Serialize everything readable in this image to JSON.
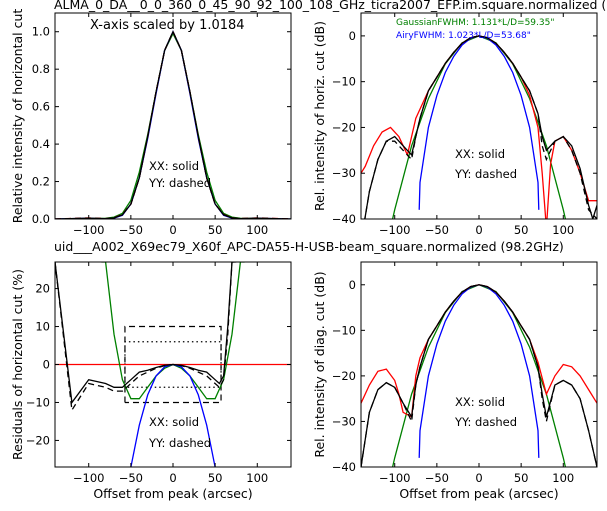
{
  "figure": {
    "title_top": "ALMA_0_DA__0_0_360_0_45_90_92_100_108_GHz_ticra2007_EFP.im.square.normalized (",
    "title_mid": "uid___A002_X69ec79_X60f_APC-DA55-H-USB-beam_square.normalized (98.2GHz)",
    "title_mid_color": "#ff0000",
    "scale_note": "X-axis scaled by 1.0184",
    "fit_gaussian": "GaussianFWHM: 1.131*L/D=59.35\"",
    "fit_gaussian_color": "#008000",
    "fit_airy": "AiryFWHM: 1.023*L/D=53.68\"",
    "fit_airy_color": "#0000ff",
    "legend_solid": "XX: solid",
    "legend_dashed": "YY: dashed",
    "colors": {
      "measured": "#000000",
      "model": "#ff0000",
      "gaussian": "#008000",
      "airy": "#0000ff"
    }
  },
  "chart_data": [
    {
      "id": "tl",
      "type": "line",
      "ylabel": "Relative intensity of horizontal cut",
      "xlabel": "",
      "xlim": [
        -140,
        140
      ],
      "ylim": [
        0.0,
        1.1
      ],
      "xticks": [
        -100,
        -50,
        0,
        50,
        100
      ],
      "yticks": [
        0.0,
        0.2,
        0.4,
        0.6,
        0.8,
        1.0
      ],
      "ytick_labels": [
        "0.0",
        "0.2",
        "0.4",
        "0.6",
        "0.8",
        "1.0"
      ],
      "series": [
        {
          "color": "#008000",
          "dash": false,
          "x": [
            -140,
            -80,
            -70,
            -60,
            -50,
            -40,
            -30,
            -20,
            -10,
            0,
            10,
            20,
            30,
            40,
            50,
            60,
            70,
            80,
            140
          ],
          "y": [
            0.0,
            0.004,
            0.01,
            0.03,
            0.1,
            0.25,
            0.45,
            0.68,
            0.9,
            0.99,
            0.9,
            0.68,
            0.45,
            0.25,
            0.1,
            0.03,
            0.01,
            0.004,
            0.0
          ]
        },
        {
          "color": "#0000ff",
          "dash": false,
          "x": [
            -140,
            -100,
            -80,
            -70,
            -60,
            -50,
            -40,
            -30,
            -20,
            -10,
            0,
            10,
            20,
            30,
            40,
            50,
            60,
            70,
            80,
            100,
            140
          ],
          "y": [
            0.0,
            0.004,
            0.0,
            0.005,
            0.02,
            0.08,
            0.22,
            0.43,
            0.67,
            0.9,
            1.0,
            0.9,
            0.67,
            0.43,
            0.22,
            0.08,
            0.02,
            0.005,
            0.0,
            0.004,
            0.0
          ]
        },
        {
          "color": "#ff0000",
          "dash": true,
          "x": [
            -140,
            -100,
            -80,
            -70,
            -60,
            -50,
            -40,
            -30,
            -20,
            -10,
            0,
            10,
            20,
            30,
            40,
            50,
            60,
            70,
            80,
            100,
            140
          ],
          "y": [
            0.0,
            0.006,
            0.002,
            0.006,
            0.025,
            0.08,
            0.22,
            0.44,
            0.68,
            0.9,
            1.0,
            0.9,
            0.68,
            0.44,
            0.22,
            0.08,
            0.025,
            0.006,
            0.002,
            0.006,
            0.0
          ]
        },
        {
          "color": "#000000",
          "dash": false,
          "x": [
            -140,
            -100,
            -80,
            -70,
            -60,
            -50,
            -40,
            -30,
            -20,
            -10,
            0,
            10,
            20,
            30,
            40,
            50,
            60,
            70,
            80,
            100,
            140
          ],
          "y": [
            0.0,
            0.005,
            0.002,
            0.006,
            0.022,
            0.08,
            0.22,
            0.44,
            0.68,
            0.9,
            1.0,
            0.9,
            0.68,
            0.44,
            0.22,
            0.08,
            0.022,
            0.006,
            0.002,
            0.005,
            0.0
          ]
        },
        {
          "color": "#000000",
          "dash": true,
          "x": [
            -140,
            -100,
            -80,
            -70,
            -60,
            -50,
            -40,
            -30,
            -20,
            -10,
            0,
            10,
            20,
            30,
            40,
            50,
            60,
            70,
            80,
            100,
            140
          ],
          "y": [
            0.0,
            0.005,
            0.002,
            0.006,
            0.024,
            0.08,
            0.22,
            0.44,
            0.68,
            0.9,
            1.0,
            0.9,
            0.68,
            0.44,
            0.22,
            0.08,
            0.024,
            0.006,
            0.002,
            0.005,
            0.0
          ]
        }
      ]
    },
    {
      "id": "tr",
      "type": "line",
      "ylabel": "Rel. intensity of horiz. cut (dB)",
      "xlabel": "",
      "xlim": [
        -140,
        140
      ],
      "ylim": [
        -40,
        5
      ],
      "xticks": [
        -100,
        -50,
        0,
        50,
        100
      ],
      "yticks": [
        -40,
        -30,
        -20,
        -10,
        0
      ],
      "series": [
        {
          "color": "#008000",
          "dash": false,
          "x": [
            -110,
            -100,
            -80,
            -60,
            -40,
            -20,
            0,
            20,
            40,
            60,
            80,
            100,
            110
          ],
          "y": [
            -46,
            -38,
            -24,
            -13.7,
            -6.1,
            -1.5,
            0,
            -1.5,
            -6.1,
            -13.7,
            -24,
            -38,
            -46
          ]
        },
        {
          "color": "#0000ff",
          "dash": false,
          "x": [
            -71,
            -70,
            -60,
            -50,
            -40,
            -30,
            -20,
            -10,
            0,
            10,
            20,
            30,
            40,
            50,
            60,
            70,
            71
          ],
          "y": [
            -38,
            -32,
            -20,
            -13,
            -8,
            -4.5,
            -2,
            -0.5,
            0,
            -0.5,
            -2,
            -4.5,
            -8,
            -13,
            -20,
            -32,
            -38
          ]
        },
        {
          "color": "#ff0000",
          "dash": false,
          "x": [
            -140,
            -135,
            -125,
            -115,
            -105,
            -95,
            -85,
            -75,
            -70,
            -60,
            -50,
            -40,
            -30,
            -20,
            -10,
            0,
            10,
            20,
            30,
            40,
            50,
            60,
            70,
            75,
            80,
            85,
            90,
            100,
            110,
            120,
            130,
            140
          ],
          "y": [
            -30,
            -28.5,
            -24,
            -21,
            -20,
            -22,
            -26,
            -18,
            -16,
            -12,
            -9,
            -6,
            -3.6,
            -1.6,
            -0.4,
            0,
            -0.4,
            -1.6,
            -3.6,
            -6,
            -9,
            -13,
            -20,
            -30,
            -42,
            -28,
            -23,
            -22,
            -25,
            -30,
            -36,
            -36
          ]
        },
        {
          "color": "#000000",
          "dash": false,
          "x": [
            -140,
            -130,
            -120,
            -110,
            -100,
            -90,
            -80,
            -75,
            -70,
            -60,
            -50,
            -40,
            -30,
            -20,
            -10,
            0,
            10,
            20,
            30,
            40,
            50,
            60,
            70,
            75,
            80,
            90,
            100,
            110,
            120,
            130,
            135,
            140
          ],
          "y": [
            -45,
            -34,
            -27,
            -23,
            -22,
            -24,
            -26,
            -22,
            -18,
            -12,
            -9,
            -6,
            -3.6,
            -1.6,
            -0.4,
            0,
            -0.4,
            -1.6,
            -3.6,
            -6,
            -9,
            -12,
            -17,
            -22,
            -25,
            -23,
            -22,
            -24,
            -29,
            -37,
            -40,
            -37
          ]
        },
        {
          "color": "#000000",
          "dash": true,
          "x": [
            -140,
            -130,
            -120,
            -110,
            -100,
            -90,
            -80,
            -75,
            -70,
            -60,
            -50,
            -40,
            -30,
            -20,
            -10,
            0,
            10,
            20,
            30,
            40,
            50,
            60,
            70,
            75,
            80,
            90,
            100,
            110,
            120,
            130,
            140
          ],
          "y": [
            -45,
            -34,
            -27,
            -23,
            -23,
            -25,
            -27,
            -22,
            -18,
            -12,
            -9,
            -6,
            -3.6,
            -1.6,
            -0.4,
            0,
            -0.4,
            -1.6,
            -3.6,
            -6,
            -9,
            -12,
            -17,
            -24,
            -27,
            -23,
            -22,
            -25,
            -30,
            -38,
            -40
          ]
        }
      ]
    },
    {
      "id": "bl",
      "type": "line",
      "ylabel": "Residuals of horizontal cut (%)",
      "xlabel": "Offset from peak (arcsec)",
      "xlim": [
        -140,
        140
      ],
      "ylim": [
        -27,
        27
      ],
      "xticks": [
        -100,
        -50,
        0,
        50,
        100
      ],
      "yticks": [
        -20,
        -10,
        0,
        10,
        20
      ],
      "series": [
        {
          "color": "#ff0000",
          "dash": false,
          "x": [
            -140,
            140
          ],
          "y": [
            0,
            0
          ]
        },
        {
          "color": "#008000",
          "dash": false,
          "x": [
            -85,
            -80,
            -70,
            -60,
            -50,
            -40,
            -30,
            -20,
            -10,
            0,
            10,
            20,
            30,
            40,
            50,
            60,
            70,
            80,
            85
          ],
          "y": [
            27,
            27,
            8,
            -4,
            -9,
            -9,
            -6,
            -3,
            -1,
            0,
            -1,
            -3,
            -6,
            -9,
            -9,
            -4,
            8,
            27,
            27
          ]
        },
        {
          "color": "#0000ff",
          "dash": false,
          "x": [
            -50,
            -40,
            -30,
            -20,
            -10,
            0,
            10,
            20,
            30,
            40,
            50
          ],
          "y": [
            -27,
            -16,
            -8,
            -3,
            -0.6,
            0,
            -0.6,
            -3,
            -8,
            -16,
            -27
          ]
        },
        {
          "color": "#000000",
          "dash": false,
          "x": [
            -140,
            -120,
            -100,
            -80,
            -70,
            -60,
            -55,
            -50,
            -40,
            -30,
            -20,
            -10,
            0,
            10,
            20,
            30,
            40,
            50,
            55,
            60,
            65,
            70,
            75
          ],
          "y": [
            27,
            -10,
            -4,
            -5,
            -6,
            -6,
            -5,
            -4,
            -2,
            -1.5,
            -0.8,
            -0.2,
            0,
            -0.2,
            -0.8,
            -1.5,
            -2,
            -4,
            -5,
            -3,
            10,
            27,
            27
          ]
        },
        {
          "color": "#000000",
          "dash": true,
          "x": [
            -140,
            -120,
            -100,
            -80,
            -70,
            -60,
            -55,
            -50,
            -40,
            -30,
            -20,
            -10,
            0,
            10,
            20,
            30,
            40,
            50,
            55,
            60,
            65,
            70,
            75
          ],
          "y": [
            27,
            -12,
            -5,
            -6,
            -7,
            -7,
            -6,
            -5,
            -3,
            -2,
            -1,
            -0.3,
            0,
            -0.3,
            -1,
            -2,
            -3,
            -5,
            -6,
            -4,
            8,
            27,
            27
          ]
        }
      ]
    },
    {
      "id": "br",
      "type": "line",
      "ylabel": "Rel. intensity of diag. cut (dB)",
      "xlabel": "Offset from peak (arcsec)",
      "xlim": [
        -140,
        140
      ],
      "ylim": [
        -40,
        5
      ],
      "xticks": [
        -100,
        -50,
        0,
        50,
        100
      ],
      "yticks": [
        -40,
        -30,
        -20,
        -10,
        0
      ],
      "series": [
        {
          "color": "#008000",
          "dash": false,
          "x": [
            -110,
            -100,
            -80,
            -60,
            -40,
            -20,
            0,
            20,
            40,
            60,
            80,
            100,
            110
          ],
          "y": [
            -46,
            -38,
            -24,
            -13.7,
            -6.1,
            -1.5,
            0,
            -1.5,
            -6.1,
            -13.7,
            -24,
            -38,
            -46
          ]
        },
        {
          "color": "#0000ff",
          "dash": false,
          "x": [
            -71,
            -70,
            -60,
            -50,
            -40,
            -30,
            -20,
            -10,
            0,
            10,
            20,
            30,
            40,
            50,
            60,
            70,
            71
          ],
          "y": [
            -38,
            -32,
            -20,
            -13,
            -8,
            -4.5,
            -2,
            -0.5,
            0,
            -0.5,
            -2,
            -4.5,
            -8,
            -13,
            -20,
            -32,
            -38
          ]
        },
        {
          "color": "#ff0000",
          "dash": false,
          "x": [
            -140,
            -130,
            -120,
            -110,
            -100,
            -95,
            -90,
            -80,
            -75,
            -70,
            -60,
            -50,
            -40,
            -30,
            -20,
            -10,
            0,
            10,
            20,
            30,
            40,
            50,
            60,
            70,
            80,
            90,
            100,
            110,
            120,
            130,
            140
          ],
          "y": [
            -26,
            -22,
            -19,
            -18.5,
            -21,
            -24,
            -28,
            -29,
            -20,
            -16,
            -12,
            -9,
            -6,
            -3.6,
            -1.6,
            -0.4,
            0,
            -0.4,
            -1.6,
            -3.6,
            -6,
            -9,
            -12,
            -17,
            -24,
            -20,
            -17.5,
            -18,
            -20,
            -23,
            -26
          ]
        },
        {
          "color": "#000000",
          "dash": false,
          "x": [
            -140,
            -130,
            -120,
            -110,
            -100,
            -90,
            -80,
            -75,
            -70,
            -60,
            -50,
            -40,
            -30,
            -20,
            -10,
            0,
            10,
            20,
            30,
            40,
            50,
            60,
            70,
            75,
            80,
            90,
            100,
            110,
            120,
            130,
            140
          ],
          "y": [
            -40,
            -28,
            -23,
            -21.5,
            -22.5,
            -26,
            -29,
            -22,
            -18,
            -12,
            -9,
            -6,
            -3.6,
            -1.6,
            -0.4,
            0,
            -0.4,
            -1.6,
            -3.6,
            -6,
            -9,
            -12,
            -18,
            -24,
            -29,
            -22,
            -21,
            -22,
            -25,
            -32,
            -40
          ]
        },
        {
          "color": "#000000",
          "dash": true,
          "x": [
            -140,
            -130,
            -120,
            -110,
            -100,
            -90,
            -80,
            -75,
            -70,
            -60,
            -50,
            -40,
            -30,
            -20,
            -10,
            0,
            10,
            20,
            30,
            40,
            50,
            60,
            70,
            75,
            80,
            90,
            100,
            110,
            120,
            130,
            140
          ],
          "y": [
            -40,
            -28,
            -23,
            -21.5,
            -22.5,
            -26,
            -30,
            -22,
            -18,
            -12,
            -9,
            -6,
            -3.6,
            -1.6,
            -0.4,
            0,
            -0.4,
            -1.6,
            -3.6,
            -6,
            -9,
            -12,
            -18,
            -25,
            -30,
            -22,
            -21,
            -22,
            -25,
            -32,
            -40
          ]
        }
      ]
    }
  ]
}
